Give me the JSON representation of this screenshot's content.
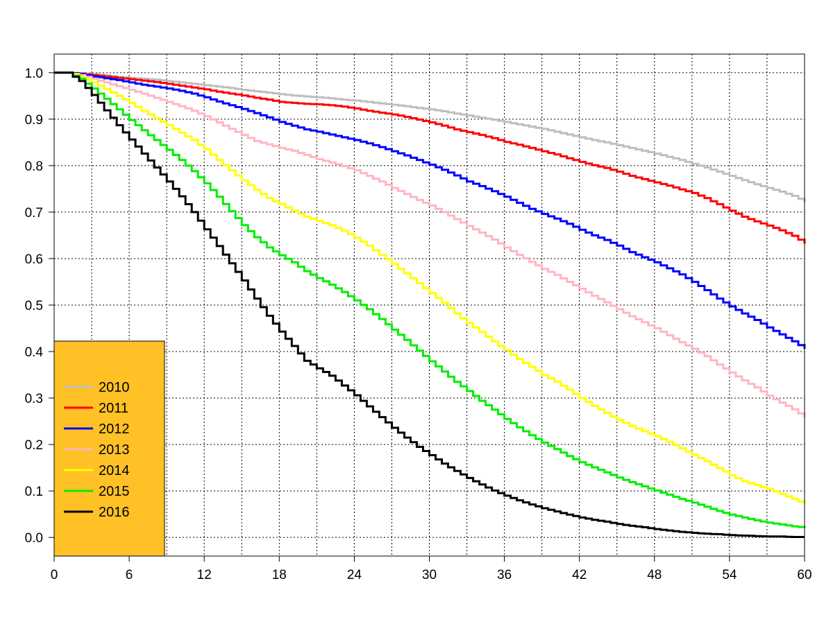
{
  "chart_data": {
    "type": "line",
    "title": "",
    "xlabel": "",
    "ylabel": "",
    "xlim": [
      0,
      60
    ],
    "ylim": [
      -0.04,
      1.04
    ],
    "x_ticks": [
      0,
      6,
      12,
      18,
      24,
      30,
      36,
      42,
      48,
      54,
      60
    ],
    "x_tick_labels": [
      "0",
      "6",
      "12",
      "18",
      "24",
      "30",
      "36",
      "42",
      "48",
      "54",
      "60"
    ],
    "y_ticks": [
      0.0,
      0.1,
      0.2,
      0.3,
      0.4,
      0.5,
      0.6,
      0.7,
      0.8,
      0.9,
      1.0
    ],
    "y_tick_labels": [
      "0.0",
      "0.1",
      "0.2",
      "0.3",
      "0.4",
      "0.5",
      "0.6",
      "0.7",
      "0.8",
      "0.9",
      "1.0"
    ],
    "grid_x": [
      0,
      3,
      6,
      9,
      12,
      15,
      18,
      21,
      24,
      27,
      30,
      33,
      36,
      39,
      42,
      45,
      48,
      51,
      54,
      57,
      60
    ],
    "grid_y": [
      0.0,
      0.1,
      0.2,
      0.3,
      0.4,
      0.5,
      0.6,
      0.7,
      0.8,
      0.9,
      1.0
    ],
    "grid": true,
    "legend_position": "bottom-left",
    "legend_background": "#FFC125",
    "x": [
      0,
      1,
      2,
      3,
      4,
      5,
      6,
      7,
      8,
      9,
      10,
      11,
      12,
      13,
      14,
      15,
      16,
      17,
      18,
      19,
      20,
      21,
      22,
      23,
      24,
      25,
      26,
      27,
      28,
      29,
      30,
      31,
      32,
      33,
      34,
      35,
      36,
      37,
      38,
      39,
      40,
      41,
      42,
      43,
      44,
      45,
      46,
      47,
      48,
      49,
      50,
      51,
      52,
      53,
      54,
      55,
      56,
      57,
      58,
      59,
      60
    ],
    "series": [
      {
        "name": "2010",
        "color": "#BEBEBE",
        "values": [
          1.0,
          1.0,
          0.999,
          0.997,
          0.994,
          0.991,
          0.989,
          0.987,
          0.985,
          0.982,
          0.979,
          0.976,
          0.973,
          0.97,
          0.967,
          0.963,
          0.96,
          0.957,
          0.954,
          0.951,
          0.949,
          0.947,
          0.945,
          0.942,
          0.94,
          0.937,
          0.934,
          0.931,
          0.928,
          0.924,
          0.921,
          0.917,
          0.912,
          0.908,
          0.903,
          0.899,
          0.894,
          0.889,
          0.884,
          0.879,
          0.873,
          0.867,
          0.861,
          0.855,
          0.85,
          0.844,
          0.838,
          0.832,
          0.826,
          0.819,
          0.812,
          0.804,
          0.796,
          0.787,
          0.778,
          0.769,
          0.76,
          0.752,
          0.744,
          0.735,
          0.722
        ]
      },
      {
        "name": "2011",
        "color": "#FF0000",
        "values": [
          1.0,
          1.0,
          0.998,
          0.995,
          0.992,
          0.989,
          0.986,
          0.983,
          0.98,
          0.976,
          0.972,
          0.968,
          0.964,
          0.959,
          0.955,
          0.951,
          0.946,
          0.942,
          0.937,
          0.935,
          0.933,
          0.932,
          0.93,
          0.927,
          0.923,
          0.918,
          0.914,
          0.91,
          0.905,
          0.899,
          0.893,
          0.886,
          0.878,
          0.872,
          0.866,
          0.859,
          0.851,
          0.845,
          0.838,
          0.831,
          0.824,
          0.816,
          0.808,
          0.801,
          0.795,
          0.787,
          0.778,
          0.771,
          0.764,
          0.757,
          0.749,
          0.741,
          0.73,
          0.717,
          0.703,
          0.69,
          0.68,
          0.671,
          0.661,
          0.649,
          0.632
        ]
      },
      {
        "name": "2012",
        "color": "#0000FF",
        "values": [
          1.0,
          1.0,
          0.997,
          0.992,
          0.988,
          0.984,
          0.979,
          0.974,
          0.97,
          0.966,
          0.961,
          0.955,
          0.947,
          0.938,
          0.93,
          0.922,
          0.913,
          0.904,
          0.894,
          0.886,
          0.878,
          0.873,
          0.867,
          0.861,
          0.855,
          0.848,
          0.84,
          0.831,
          0.822,
          0.812,
          0.802,
          0.791,
          0.779,
          0.766,
          0.756,
          0.745,
          0.733,
          0.72,
          0.707,
          0.696,
          0.686,
          0.675,
          0.662,
          0.65,
          0.64,
          0.628,
          0.614,
          0.603,
          0.592,
          0.579,
          0.566,
          0.55,
          0.532,
          0.514,
          0.497,
          0.482,
          0.468,
          0.452,
          0.437,
          0.422,
          0.406
        ]
      },
      {
        "name": "2013",
        "color": "#FFB6C1",
        "values": [
          1.0,
          1.0,
          0.995,
          0.987,
          0.979,
          0.971,
          0.963,
          0.955,
          0.946,
          0.937,
          0.928,
          0.918,
          0.906,
          0.893,
          0.879,
          0.866,
          0.853,
          0.846,
          0.838,
          0.832,
          0.823,
          0.814,
          0.807,
          0.799,
          0.79,
          0.778,
          0.766,
          0.752,
          0.739,
          0.726,
          0.714,
          0.7,
          0.685,
          0.67,
          0.656,
          0.641,
          0.624,
          0.608,
          0.593,
          0.578,
          0.565,
          0.55,
          0.535,
          0.52,
          0.506,
          0.491,
          0.476,
          0.463,
          0.45,
          0.435,
          0.42,
          0.406,
          0.39,
          0.372,
          0.355,
          0.338,
          0.323,
          0.305,
          0.29,
          0.276,
          0.258
        ]
      },
      {
        "name": "2014",
        "color": "#FFFF00",
        "values": [
          1.0,
          1.0,
          0.992,
          0.979,
          0.965,
          0.95,
          0.935,
          0.918,
          0.902,
          0.887,
          0.871,
          0.855,
          0.835,
          0.812,
          0.79,
          0.768,
          0.748,
          0.73,
          0.717,
          0.703,
          0.69,
          0.681,
          0.672,
          0.66,
          0.645,
          0.628,
          0.608,
          0.588,
          0.568,
          0.547,
          0.526,
          0.505,
          0.482,
          0.461,
          0.442,
          0.422,
          0.403,
          0.384,
          0.367,
          0.35,
          0.335,
          0.318,
          0.3,
          0.283,
          0.268,
          0.253,
          0.24,
          0.229,
          0.218,
          0.206,
          0.192,
          0.178,
          0.164,
          0.149,
          0.134,
          0.121,
          0.113,
          0.104,
          0.094,
          0.083,
          0.072
        ]
      },
      {
        "name": "2015",
        "color": "#00EE00",
        "values": [
          1.0,
          1.0,
          0.987,
          0.966,
          0.944,
          0.921,
          0.898,
          0.876,
          0.855,
          0.834,
          0.812,
          0.788,
          0.762,
          0.733,
          0.702,
          0.672,
          0.646,
          0.624,
          0.607,
          0.592,
          0.573,
          0.558,
          0.544,
          0.528,
          0.51,
          0.491,
          0.47,
          0.447,
          0.425,
          0.402,
          0.379,
          0.357,
          0.335,
          0.315,
          0.294,
          0.275,
          0.255,
          0.237,
          0.22,
          0.204,
          0.19,
          0.175,
          0.162,
          0.151,
          0.14,
          0.129,
          0.119,
          0.11,
          0.101,
          0.092,
          0.083,
          0.075,
          0.066,
          0.057,
          0.049,
          0.043,
          0.037,
          0.032,
          0.028,
          0.024,
          0.021
        ]
      },
      {
        "name": "2016",
        "color": "#000000",
        "values": [
          1.0,
          1.0,
          0.982,
          0.952,
          0.919,
          0.887,
          0.856,
          0.826,
          0.796,
          0.766,
          0.734,
          0.7,
          0.663,
          0.627,
          0.59,
          0.553,
          0.514,
          0.477,
          0.443,
          0.412,
          0.38,
          0.364,
          0.348,
          0.327,
          0.306,
          0.282,
          0.259,
          0.236,
          0.215,
          0.195,
          0.177,
          0.159,
          0.143,
          0.128,
          0.114,
          0.101,
          0.09,
          0.08,
          0.071,
          0.063,
          0.056,
          0.049,
          0.043,
          0.038,
          0.034,
          0.029,
          0.025,
          0.022,
          0.018,
          0.015,
          0.012,
          0.01,
          0.008,
          0.007,
          0.005,
          0.004,
          0.003,
          0.002,
          0.002,
          0.001,
          0.001
        ]
      }
    ]
  }
}
